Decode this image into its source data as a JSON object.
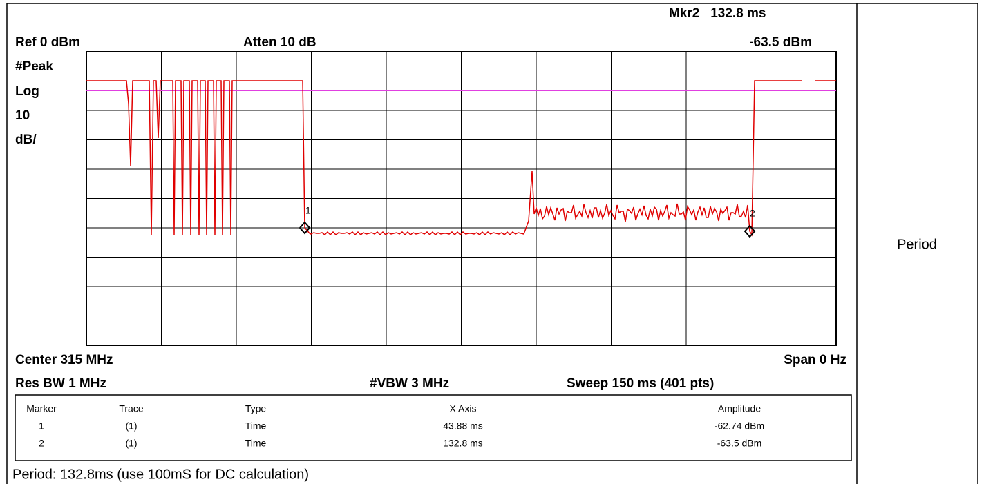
{
  "header": {
    "marker_readout": "Mkr2   132.8 ms",
    "ref_level": "Ref 0 dBm",
    "attenuation": "Atten 10 dB",
    "marker_amplitude": "-63.5 dBm"
  },
  "scale": [
    "#Peak",
    "Log",
    "10",
    "dB/"
  ],
  "plot_markers": [
    "1",
    "2"
  ],
  "footer": {
    "center": "Center 315 MHz",
    "span": "Span 0 Hz",
    "rbw": "Res BW 1 MHz",
    "vbw": "#VBW 3 MHz",
    "sweep": "Sweep 150 ms (401 pts)"
  },
  "marker_table": {
    "columns": [
      "Marker",
      "Trace",
      "Type",
      "X Axis",
      "Amplitude"
    ],
    "rows": [
      [
        "1",
        "(1)",
        "Time",
        "43.88 ms",
        "-62.74 dBm"
      ],
      [
        "2",
        "(1)",
        "Time",
        "132.8 ms",
        "-63.5 dBm"
      ]
    ]
  },
  "caption": "Period: 132.8ms (use 100mS for DC calculation)",
  "side_label": "Period"
}
